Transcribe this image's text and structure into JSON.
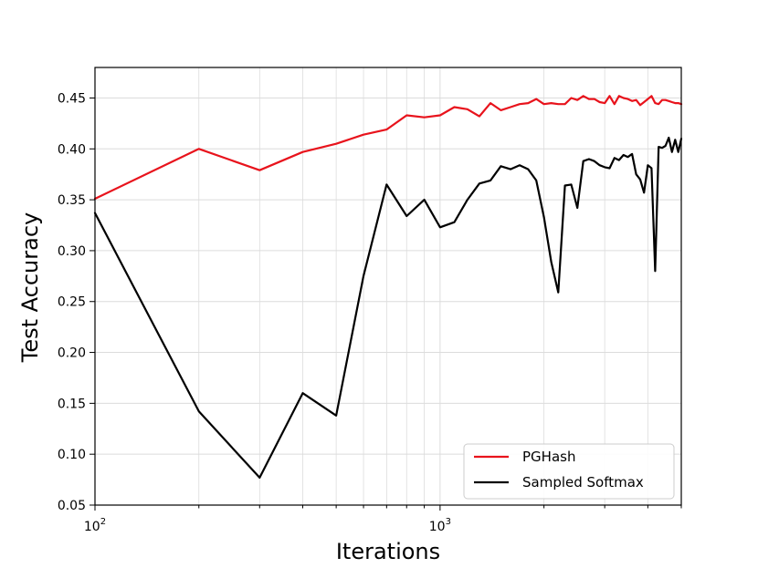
{
  "chart_data": {
    "type": "line",
    "title": "",
    "xlabel": "Iterations",
    "ylabel": "Test Accuracy",
    "x_scale": "log",
    "xlim": [
      100,
      5000
    ],
    "ylim": [
      0.05,
      0.48
    ],
    "x_major_ticks": [
      {
        "value": 100,
        "base": "10",
        "exp": "2"
      },
      {
        "value": 1000,
        "base": "10",
        "exp": "3"
      }
    ],
    "y_ticks": [
      0.05,
      0.1,
      0.15,
      0.2,
      0.25,
      0.3,
      0.35,
      0.4,
      0.45
    ],
    "y_tick_labels": [
      "0.05",
      "0.10",
      "0.15",
      "0.20",
      "0.25",
      "0.30",
      "0.35",
      "0.40",
      "0.45"
    ],
    "grid": true,
    "legend_position": "lower right",
    "series": [
      {
        "name": "PGHash",
        "color": "#e8131c",
        "x": [
          100,
          200,
          300,
          400,
          500,
          600,
          700,
          800,
          900,
          1000,
          1100,
          1200,
          1300,
          1400,
          1500,
          1600,
          1700,
          1800,
          1900,
          2000,
          2100,
          2200,
          2300,
          2400,
          2500,
          2600,
          2700,
          2800,
          2900,
          3000,
          3100,
          3200,
          3300,
          3400,
          3500,
          3600,
          3700,
          3800,
          3900,
          4000,
          4100,
          4200,
          4300,
          4400,
          4500,
          4600,
          4700,
          4800,
          4900,
          5000
        ],
        "y": [
          0.351,
          0.4,
          0.379,
          0.397,
          0.405,
          0.414,
          0.419,
          0.433,
          0.431,
          0.433,
          0.441,
          0.439,
          0.432,
          0.445,
          0.438,
          0.441,
          0.444,
          0.445,
          0.449,
          0.444,
          0.445,
          0.444,
          0.444,
          0.45,
          0.448,
          0.452,
          0.449,
          0.449,
          0.446,
          0.445,
          0.452,
          0.444,
          0.452,
          0.45,
          0.449,
          0.447,
          0.448,
          0.443,
          0.446,
          0.449,
          0.452,
          0.445,
          0.444,
          0.448,
          0.448,
          0.447,
          0.446,
          0.445,
          0.445,
          0.444
        ]
      },
      {
        "name": "Sampled Softmax",
        "color": "#000000",
        "x": [
          100,
          200,
          300,
          400,
          500,
          600,
          700,
          800,
          900,
          1000,
          1100,
          1200,
          1300,
          1400,
          1500,
          1600,
          1700,
          1800,
          1900,
          2000,
          2100,
          2200,
          2300,
          2400,
          2500,
          2600,
          2700,
          2800,
          2900,
          3000,
          3100,
          3200,
          3300,
          3400,
          3500,
          3600,
          3700,
          3800,
          3900,
          4000,
          4100,
          4200,
          4300,
          4400,
          4500,
          4600,
          4700,
          4800,
          4900,
          5000
        ],
        "y": [
          0.337,
          0.142,
          0.077,
          0.16,
          0.138,
          0.275,
          0.365,
          0.334,
          0.35,
          0.323,
          0.328,
          0.35,
          0.366,
          0.369,
          0.383,
          0.38,
          0.384,
          0.38,
          0.369,
          0.333,
          0.289,
          0.259,
          0.364,
          0.365,
          0.342,
          0.388,
          0.39,
          0.388,
          0.384,
          0.382,
          0.381,
          0.391,
          0.389,
          0.394,
          0.392,
          0.395,
          0.375,
          0.37,
          0.357,
          0.384,
          0.381,
          0.28,
          0.402,
          0.401,
          0.403,
          0.411,
          0.397,
          0.409,
          0.397,
          0.41
        ]
      }
    ]
  }
}
